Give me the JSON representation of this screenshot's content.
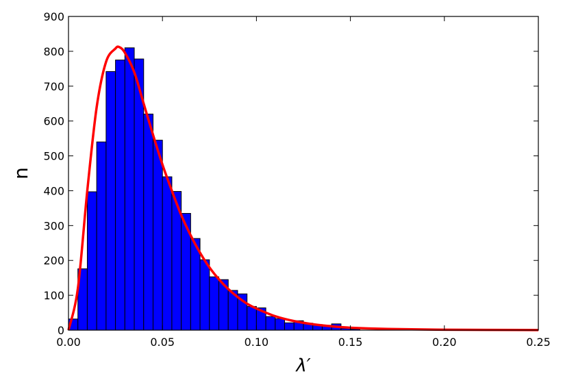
{
  "chart_data": {
    "type": "bar",
    "xlabel": "λ′",
    "ylabel": "n",
    "xlim": [
      0.0,
      0.25
    ],
    "ylim": [
      0,
      900
    ],
    "x_ticks": [
      "0.00",
      "0.05",
      "0.10",
      "0.15",
      "0.20",
      "0.25"
    ],
    "y_ticks": [
      "0",
      "100",
      "200",
      "300",
      "400",
      "500",
      "600",
      "700",
      "800",
      "900"
    ],
    "grid": false,
    "legend": "none",
    "bin_width": 0.005,
    "bins": [
      {
        "x_start": 0.0,
        "value": 32
      },
      {
        "x_start": 0.005,
        "value": 176
      },
      {
        "x_start": 0.01,
        "value": 397
      },
      {
        "x_start": 0.015,
        "value": 540
      },
      {
        "x_start": 0.02,
        "value": 742
      },
      {
        "x_start": 0.025,
        "value": 775
      },
      {
        "x_start": 0.03,
        "value": 810
      },
      {
        "x_start": 0.035,
        "value": 778
      },
      {
        "x_start": 0.04,
        "value": 620
      },
      {
        "x_start": 0.045,
        "value": 545
      },
      {
        "x_start": 0.05,
        "value": 440
      },
      {
        "x_start": 0.055,
        "value": 398
      },
      {
        "x_start": 0.06,
        "value": 335
      },
      {
        "x_start": 0.065,
        "value": 263
      },
      {
        "x_start": 0.07,
        "value": 202
      },
      {
        "x_start": 0.075,
        "value": 153
      },
      {
        "x_start": 0.08,
        "value": 145
      },
      {
        "x_start": 0.085,
        "value": 114
      },
      {
        "x_start": 0.09,
        "value": 104
      },
      {
        "x_start": 0.095,
        "value": 68
      },
      {
        "x_start": 0.1,
        "value": 64
      },
      {
        "x_start": 0.105,
        "value": 39
      },
      {
        "x_start": 0.11,
        "value": 33
      },
      {
        "x_start": 0.115,
        "value": 21
      },
      {
        "x_start": 0.12,
        "value": 27
      },
      {
        "x_start": 0.125,
        "value": 20
      },
      {
        "x_start": 0.13,
        "value": 16
      },
      {
        "x_start": 0.135,
        "value": 14
      },
      {
        "x_start": 0.14,
        "value": 18
      },
      {
        "x_start": 0.145,
        "value": 5
      },
      {
        "x_start": 0.15,
        "value": 3
      }
    ],
    "fit_curve": {
      "color": "#ff0000",
      "points": [
        [
          0.0,
          0
        ],
        [
          0.005,
          120
        ],
        [
          0.01,
          400
        ],
        [
          0.015,
          640
        ],
        [
          0.02,
          770
        ],
        [
          0.025,
          808
        ],
        [
          0.027,
          812
        ],
        [
          0.03,
          796
        ],
        [
          0.035,
          740
        ],
        [
          0.04,
          650
        ],
        [
          0.045,
          560
        ],
        [
          0.05,
          475
        ],
        [
          0.055,
          400
        ],
        [
          0.06,
          330
        ],
        [
          0.065,
          272
        ],
        [
          0.07,
          222
        ],
        [
          0.075,
          180
        ],
        [
          0.08,
          146
        ],
        [
          0.085,
          118
        ],
        [
          0.09,
          95
        ],
        [
          0.095,
          76
        ],
        [
          0.1,
          62
        ],
        [
          0.11,
          40
        ],
        [
          0.12,
          26
        ],
        [
          0.13,
          17
        ],
        [
          0.14,
          11
        ],
        [
          0.15,
          7
        ],
        [
          0.17,
          3.5
        ],
        [
          0.2,
          1.2
        ],
        [
          0.25,
          0.3
        ]
      ]
    },
    "colors": {
      "bar_fill": "#0000ff",
      "bar_edge": "#000000",
      "curve": "#ff0000"
    }
  }
}
